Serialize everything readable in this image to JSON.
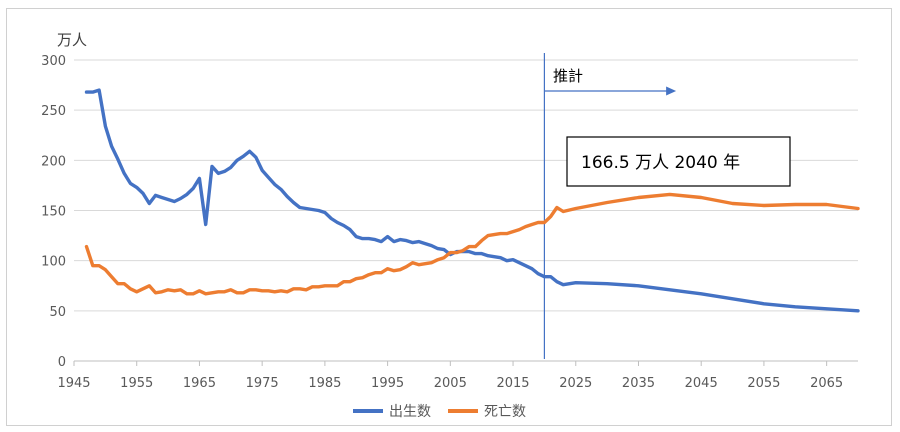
{
  "chart_data": {
    "type": "line",
    "unit_label": "万人",
    "xlim": [
      1945,
      2070
    ],
    "ylim": [
      0,
      300
    ],
    "x_ticks": [
      "1945",
      "1955",
      "1965",
      "1975",
      "1985",
      "1995",
      "2005",
      "2015",
      "2025",
      "2035",
      "2045",
      "2055",
      "2065"
    ],
    "y_ticks": [
      "0",
      "50",
      "100",
      "150",
      "200",
      "250",
      "300"
    ],
    "projection_start_year": 2020,
    "projection_label": "推計",
    "callout": "166.5 万人  2040 年",
    "series": [
      {
        "name": "出生数",
        "color": "#4472C4",
        "x": [
          1947,
          1948,
          1949,
          1950,
          1951,
          1952,
          1953,
          1954,
          1955,
          1956,
          1957,
          1958,
          1959,
          1960,
          1961,
          1962,
          1963,
          1964,
          1965,
          1966,
          1967,
          1968,
          1969,
          1970,
          1971,
          1972,
          1973,
          1974,
          1975,
          1976,
          1977,
          1978,
          1979,
          1980,
          1981,
          1982,
          1983,
          1984,
          1985,
          1986,
          1987,
          1988,
          1989,
          1990,
          1991,
          1992,
          1993,
          1994,
          1995,
          1996,
          1997,
          1998,
          1999,
          2000,
          2001,
          2002,
          2003,
          2004,
          2005,
          2006,
          2007,
          2008,
          2009,
          2010,
          2011,
          2012,
          2013,
          2014,
          2015,
          2016,
          2017,
          2018,
          2019,
          2020,
          2021,
          2022,
          2023,
          2025,
          2030,
          2035,
          2040,
          2045,
          2050,
          2055,
          2060,
          2065,
          2070
        ],
        "values": [
          268,
          268,
          270,
          234,
          214,
          201,
          187,
          177,
          173,
          167,
          157,
          165,
          163,
          161,
          159,
          162,
          166,
          172,
          182,
          136,
          194,
          187,
          189,
          193,
          200,
          204,
          209,
          203,
          190,
          183,
          176,
          171,
          164,
          158,
          153,
          152,
          151,
          150,
          148,
          142,
          138,
          135,
          131,
          124,
          122,
          122,
          121,
          119,
          124,
          119,
          121,
          120,
          118,
          119,
          117,
          115,
          112,
          111,
          106,
          109,
          109,
          109,
          107,
          107,
          105,
          104,
          103,
          100,
          101,
          98,
          95,
          92,
          87,
          84,
          84,
          79,
          76,
          78,
          77,
          75,
          71,
          67,
          62,
          57,
          54,
          52,
          50
        ]
      },
      {
        "name": "死亡数",
        "color": "#ED7D31",
        "x": [
          1947,
          1948,
          1949,
          1950,
          1951,
          1952,
          1953,
          1954,
          1955,
          1956,
          1957,
          1958,
          1959,
          1960,
          1961,
          1962,
          1963,
          1964,
          1965,
          1966,
          1967,
          1968,
          1969,
          1970,
          1971,
          1972,
          1973,
          1974,
          1975,
          1976,
          1977,
          1978,
          1979,
          1980,
          1981,
          1982,
          1983,
          1984,
          1985,
          1986,
          1987,
          1988,
          1989,
          1990,
          1991,
          1992,
          1993,
          1994,
          1995,
          1996,
          1997,
          1998,
          1999,
          2000,
          2001,
          2002,
          2003,
          2004,
          2005,
          2006,
          2007,
          2008,
          2009,
          2010,
          2011,
          2012,
          2013,
          2014,
          2015,
          2016,
          2017,
          2018,
          2019,
          2020,
          2021,
          2022,
          2023,
          2025,
          2030,
          2035,
          2040,
          2045,
          2050,
          2055,
          2060,
          2065,
          2070
        ],
        "values": [
          114,
          95,
          95,
          91,
          84,
          77,
          77,
          72,
          69,
          72,
          75,
          68,
          69,
          71,
          70,
          71,
          67,
          67,
          70,
          67,
          68,
          69,
          69,
          71,
          68,
          68,
          71,
          71,
          70,
          70,
          69,
          70,
          69,
          72,
          72,
          71,
          74,
          74,
          75,
          75,
          75,
          79,
          79,
          82,
          83,
          86,
          88,
          88,
          92,
          90,
          91,
          94,
          98,
          96,
          97,
          98,
          101,
          103,
          108,
          108,
          110,
          114,
          114,
          120,
          125,
          126,
          127,
          127,
          129,
          131,
          134,
          136,
          138,
          138,
          144,
          153,
          149,
          152,
          158,
          163,
          166,
          163,
          157,
          155,
          156,
          156,
          152
        ]
      }
    ]
  }
}
